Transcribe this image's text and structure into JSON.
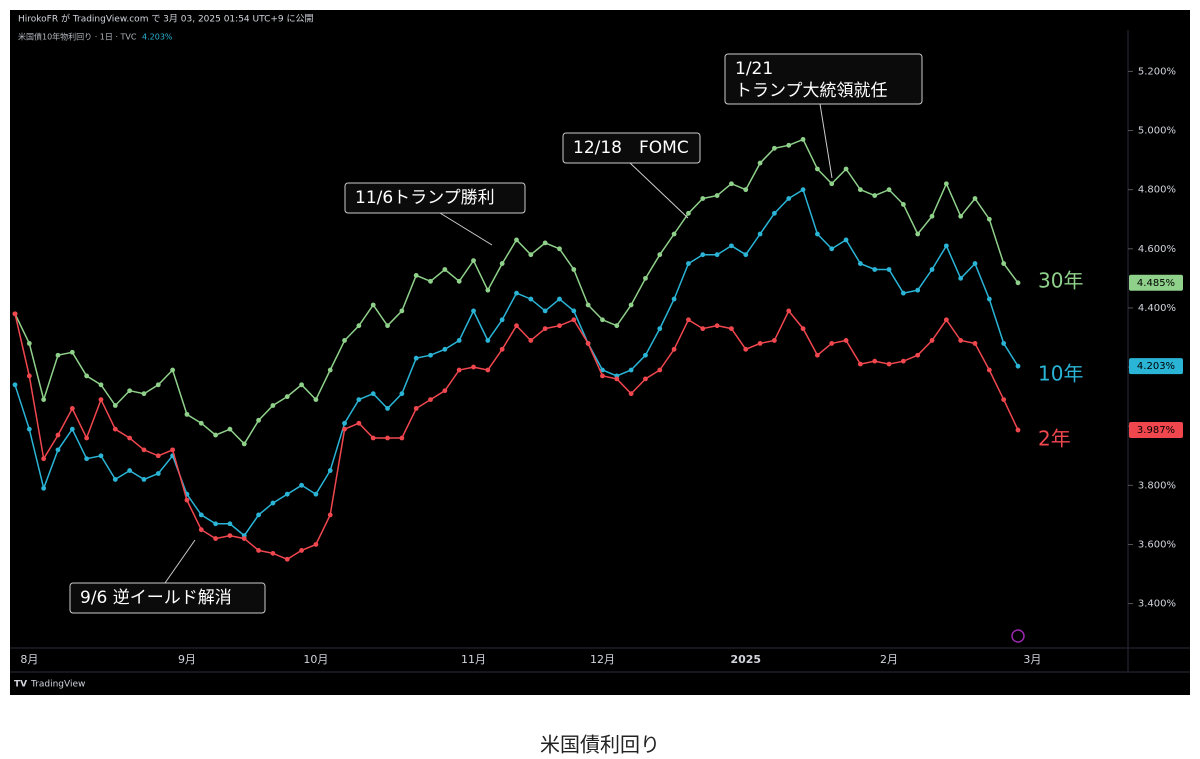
{
  "chart_data": {
    "type": "line",
    "header": {
      "publisher": "HirokoFR が TradingView.com で 3月 03, 2025 01:54 UTC+9 に公開",
      "symbol": "米国債10年物利回り · 1日 · TVC",
      "symbol_value": "4.203%"
    },
    "brand": "TradingView",
    "caption": "米国債利回り",
    "categories": [
      null,
      "8月",
      null,
      null,
      null,
      null,
      null,
      null,
      null,
      null,
      null,
      null,
      "9月",
      null,
      null,
      null,
      null,
      null,
      null,
      null,
      null,
      "10月",
      null,
      null,
      null,
      null,
      null,
      null,
      null,
      null,
      null,
      null,
      "11月",
      null,
      null,
      null,
      null,
      null,
      null,
      null,
      null,
      "12月",
      null,
      null,
      null,
      null,
      null,
      null,
      null,
      null,
      null,
      "2025",
      null,
      null,
      null,
      null,
      null,
      null,
      null,
      null,
      null,
      "2月",
      null,
      null,
      null,
      null,
      null,
      null,
      null,
      null,
      null,
      "3月"
    ],
    "series": [
      {
        "name": "30年",
        "color": "#8fd18a",
        "values": [
          4.38,
          4.28,
          4.09,
          4.24,
          4.25,
          4.17,
          4.14,
          4.07,
          4.12,
          4.11,
          4.14,
          4.19,
          4.04,
          4.01,
          3.97,
          3.99,
          3.94,
          4.02,
          4.07,
          4.1,
          4.14,
          4.09,
          4.19,
          4.29,
          4.34,
          4.41,
          4.34,
          4.39,
          4.51,
          4.49,
          4.53,
          4.49,
          4.56,
          4.46,
          4.55,
          4.63,
          4.58,
          4.62,
          4.6,
          4.53,
          4.41,
          4.36,
          4.34,
          4.41,
          4.5,
          4.58,
          4.65,
          4.72,
          4.77,
          4.78,
          4.82,
          4.8,
          4.89,
          4.94,
          4.95,
          4.97,
          4.87,
          4.82,
          4.87,
          4.8,
          4.78,
          4.8,
          4.75,
          4.65,
          4.71,
          4.82,
          4.71,
          4.77,
          4.7,
          4.55,
          4.485,
          null
        ],
        "value_labels": [
          null,
          null,
          null,
          null,
          null,
          null,
          null,
          null,
          null,
          null,
          null,
          null,
          null,
          null,
          null,
          null,
          null,
          null,
          null,
          null,
          null,
          null,
          null,
          null,
          null,
          null,
          null,
          null,
          null,
          null,
          null,
          null,
          null,
          null,
          null,
          null,
          null,
          null,
          null,
          null,
          null,
          null,
          null,
          null,
          null,
          null,
          null,
          null,
          null,
          null,
          null,
          null,
          null,
          null,
          null,
          null,
          null,
          null,
          null,
          null,
          null,
          null,
          null,
          null,
          null,
          null,
          null,
          null,
          null,
          null,
          "4.485%",
          null
        ]
      },
      {
        "name": "10年",
        "color": "#2ab4d6",
        "values": [
          4.14,
          3.99,
          3.79,
          3.92,
          3.99,
          3.89,
          3.9,
          3.82,
          3.85,
          3.82,
          3.84,
          3.9,
          3.77,
          3.7,
          3.67,
          3.67,
          3.63,
          3.7,
          3.74,
          3.77,
          3.8,
          3.77,
          3.85,
          4.01,
          4.09,
          4.11,
          4.06,
          4.11,
          4.23,
          4.24,
          4.26,
          4.29,
          4.39,
          4.29,
          4.36,
          4.45,
          4.43,
          4.39,
          4.43,
          4.39,
          4.28,
          4.19,
          4.17,
          4.19,
          4.24,
          4.33,
          4.43,
          4.55,
          4.58,
          4.58,
          4.61,
          4.58,
          4.65,
          4.72,
          4.77,
          4.8,
          4.65,
          4.6,
          4.63,
          4.55,
          4.53,
          4.53,
          4.45,
          4.46,
          4.53,
          4.61,
          4.5,
          4.55,
          4.43,
          4.28,
          4.203,
          null
        ],
        "value_labels": [
          null,
          null,
          null,
          null,
          null,
          null,
          null,
          null,
          null,
          null,
          null,
          null,
          null,
          null,
          null,
          null,
          null,
          null,
          null,
          null,
          null,
          null,
          null,
          null,
          null,
          null,
          null,
          null,
          null,
          null,
          null,
          null,
          null,
          null,
          null,
          null,
          null,
          null,
          null,
          null,
          null,
          null,
          null,
          null,
          null,
          null,
          null,
          null,
          null,
          null,
          null,
          null,
          null,
          null,
          null,
          null,
          null,
          null,
          null,
          null,
          null,
          null,
          null,
          null,
          null,
          null,
          null,
          null,
          null,
          null,
          "4.203%",
          null
        ]
      },
      {
        "name": "2年",
        "color": "#f0474f",
        "values": [
          4.38,
          4.17,
          3.89,
          3.97,
          4.06,
          3.96,
          4.09,
          3.99,
          3.96,
          3.92,
          3.9,
          3.92,
          3.75,
          3.65,
          3.62,
          3.63,
          3.62,
          3.58,
          3.57,
          3.55,
          3.58,
          3.6,
          3.7,
          3.99,
          4.01,
          3.96,
          3.96,
          3.96,
          4.06,
          4.09,
          4.12,
          4.19,
          4.2,
          4.19,
          4.26,
          4.34,
          4.29,
          4.33,
          4.34,
          4.36,
          4.28,
          4.17,
          4.16,
          4.11,
          4.16,
          4.19,
          4.26,
          4.36,
          4.33,
          4.34,
          4.33,
          4.26,
          4.28,
          4.29,
          4.39,
          4.33,
          4.24,
          4.28,
          4.29,
          4.21,
          4.22,
          4.21,
          4.22,
          4.24,
          4.29,
          4.36,
          4.29,
          4.28,
          4.19,
          4.09,
          3.987,
          null
        ],
        "value_labels": [
          null,
          null,
          null,
          null,
          null,
          null,
          null,
          null,
          null,
          null,
          null,
          null,
          null,
          null,
          null,
          null,
          null,
          null,
          null,
          null,
          null,
          null,
          null,
          null,
          null,
          null,
          null,
          null,
          null,
          null,
          null,
          null,
          null,
          null,
          null,
          null,
          null,
          null,
          null,
          null,
          null,
          null,
          null,
          null,
          null,
          null,
          null,
          null,
          null,
          null,
          null,
          null,
          null,
          null,
          null,
          null,
          null,
          null,
          null,
          null,
          null,
          null,
          null,
          null,
          null,
          null,
          null,
          null,
          null,
          null,
          "3.987%",
          null
        ]
      }
    ],
    "ylim": [
      3.26,
      5.34
    ],
    "yticks": [
      {
        "value": 3.4,
        "label": "3.400%"
      },
      {
        "value": 3.6,
        "label": "3.600%"
      },
      {
        "value": 3.8,
        "label": "3.800%"
      },
      {
        "value": 4.0,
        "label": "4.000%"
      },
      {
        "value": 4.2,
        "label": "4.200%"
      },
      {
        "value": 4.4,
        "label": "4.400%"
      },
      {
        "value": 4.6,
        "label": "4.600%"
      },
      {
        "value": 4.8,
        "label": "4.800%"
      },
      {
        "value": 5.0,
        "label": "5.000%"
      },
      {
        "value": 5.2,
        "label": "5.200%"
      }
    ],
    "grid": false,
    "annotations": [
      [
        "9/6 逆イールド解消"
      ],
      [
        "11/6トランプ勝利"
      ],
      [
        "12/18　FOMC"
      ],
      [
        "1/21",
        "トランプ大統領就任"
      ]
    ]
  }
}
